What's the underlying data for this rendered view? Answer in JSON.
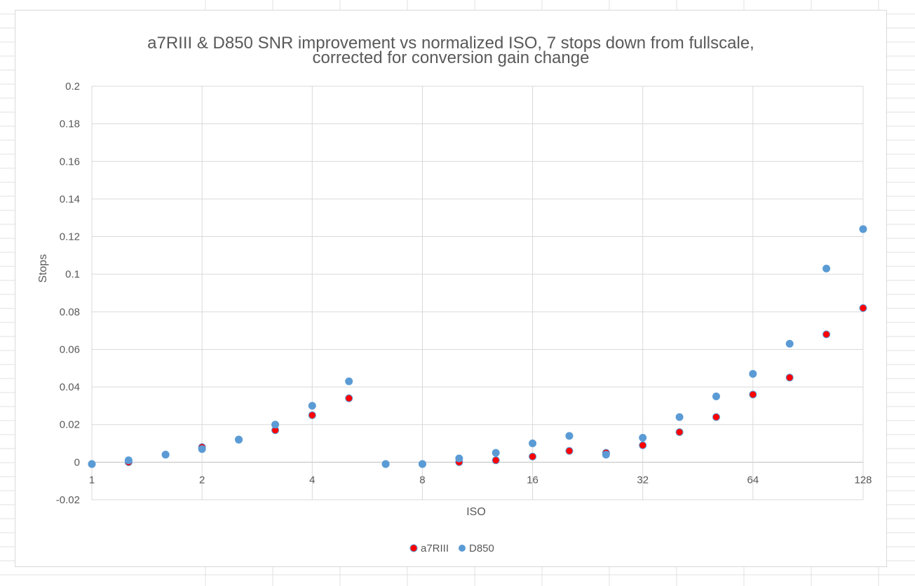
{
  "chart_data": {
    "type": "scatter",
    "title_lines": [
      "a7RIII & D850 SNR improvement vs normalized ISO, 7 stops down from fullscale,",
      "corrected for conversion gain change"
    ],
    "xlabel": "ISO",
    "ylabel": "Stops",
    "x_scale": "log2",
    "xlim": [
      1,
      128
    ],
    "ylim": [
      -0.02,
      0.2
    ],
    "x_ticks": [
      1,
      2,
      4,
      8,
      16,
      32,
      64,
      128
    ],
    "x_tick_labels": [
      "1",
      "2",
      "4",
      "8",
      "16",
      "32",
      "64",
      "128"
    ],
    "y_ticks": [
      -0.02,
      0,
      0.02,
      0.04,
      0.06,
      0.08,
      0.1,
      0.12,
      0.14,
      0.16,
      0.18,
      0.2
    ],
    "y_tick_labels": [
      "-0.02",
      "0",
      "0.02",
      "0.04",
      "0.06",
      "0.08",
      "0.1",
      "0.12",
      "0.14",
      "0.16",
      "0.18",
      "0.2"
    ],
    "grid": true,
    "legend_position": "bottom",
    "series": [
      {
        "name": "a7RIII",
        "color": "#ff0000",
        "edge_color": "#5b9bd5",
        "points": [
          [
            1,
            -0.001
          ],
          [
            1.26,
            0.0
          ],
          [
            1.59,
            0.004
          ],
          [
            2,
            0.008
          ],
          [
            2.52,
            0.012
          ],
          [
            3.17,
            0.017
          ],
          [
            4,
            0.025
          ],
          [
            5.04,
            0.034
          ],
          [
            6.35,
            -0.001
          ],
          [
            8,
            -0.001
          ],
          [
            10.08,
            0.0
          ],
          [
            12.7,
            0.001
          ],
          [
            16,
            0.003
          ],
          [
            20.16,
            0.006
          ],
          [
            25.4,
            0.005
          ],
          [
            32,
            0.009
          ],
          [
            40.32,
            0.016
          ],
          [
            50.8,
            0.024
          ],
          [
            64,
            0.036
          ],
          [
            80.63,
            0.045
          ],
          [
            101.59,
            0.068
          ],
          [
            128,
            0.082
          ]
        ]
      },
      {
        "name": "D850",
        "color": "#5b9bd5",
        "points": [
          [
            1,
            -0.001
          ],
          [
            1.26,
            0.001
          ],
          [
            1.59,
            0.004
          ],
          [
            2,
            0.007
          ],
          [
            2.52,
            0.012
          ],
          [
            3.17,
            0.02
          ],
          [
            4,
            0.03
          ],
          [
            5.04,
            0.043
          ],
          [
            6.35,
            -0.001
          ],
          [
            8,
            -0.001
          ],
          [
            10.08,
            0.002
          ],
          [
            12.7,
            0.005
          ],
          [
            16,
            0.01
          ],
          [
            20.16,
            0.014
          ],
          [
            25.4,
            0.004
          ],
          [
            32,
            0.013
          ],
          [
            40.32,
            0.024
          ],
          [
            50.8,
            0.035
          ],
          [
            64,
            0.047
          ],
          [
            80.63,
            0.063
          ],
          [
            101.59,
            0.103
          ],
          [
            128,
            0.124
          ]
        ]
      }
    ]
  }
}
